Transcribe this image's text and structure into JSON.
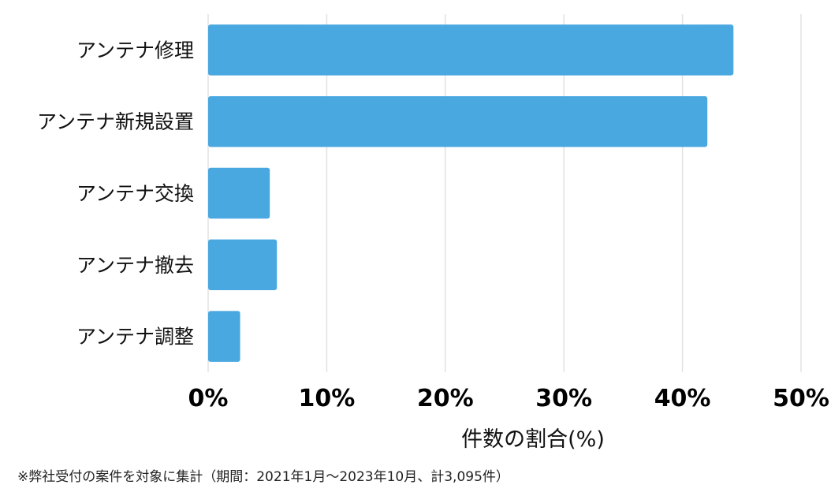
{
  "chart_data": {
    "type": "bar",
    "orientation": "horizontal",
    "categories": [
      "アンテナ修理",
      "アンテナ新規設置",
      "アンテナ交換",
      "アンテナ撤去",
      "アンテナ調整"
    ],
    "values": [
      44.3,
      42.1,
      5.2,
      5.8,
      2.7
    ],
    "title": "",
    "xlabel": "件数の割合(%)",
    "ylabel": "",
    "xlim": [
      0,
      50
    ],
    "xticks": [
      0,
      10,
      20,
      30,
      40,
      50
    ],
    "xtick_labels": [
      "0%",
      "10%",
      "20%",
      "30%",
      "40%",
      "50%"
    ],
    "grid": "vertical",
    "legend": "none",
    "bar_color": "#4aa8e0",
    "grid_color": "#e2e2e2"
  },
  "footnote": "※弊社受付の案件を対象に集計（期間：2021年1月〜2023年10月、計3,095件）"
}
